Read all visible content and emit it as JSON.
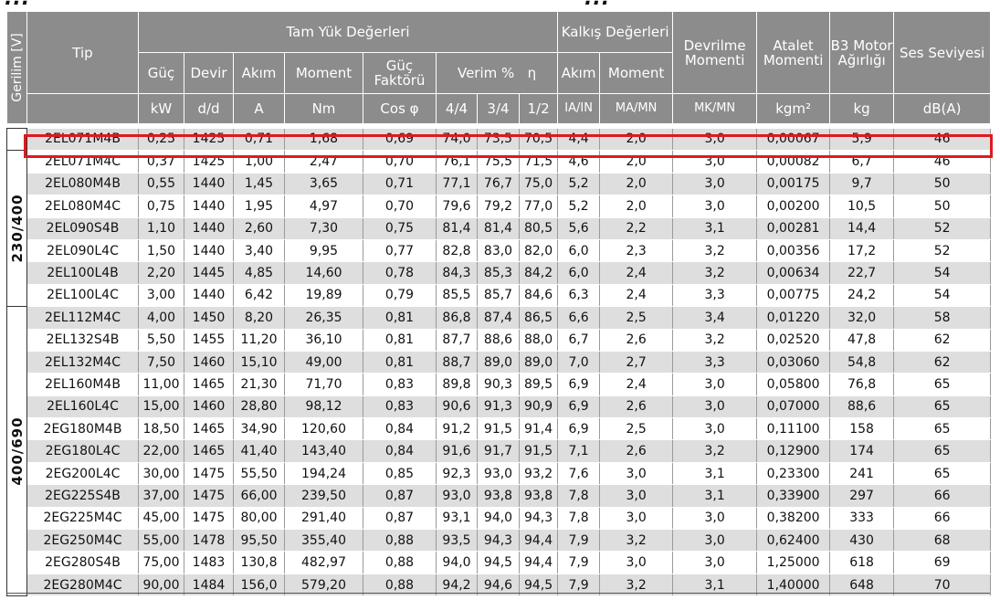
{
  "cutoff_title": {
    "left": "...",
    "right": "..."
  },
  "headers": {
    "gerilim": "Gerilim [V]",
    "tip": "Tip",
    "tam_yuk": "Tam Yük Değerleri",
    "kalkis": "Kalkış Değerleri",
    "devrilme": "Devrilme Momenti",
    "atalet": "Atalet Momenti",
    "b3": "B3 Motor Ağırlığı",
    "ses": "Ses Seviyesi",
    "guc": "Güç",
    "devir": "Devir",
    "akim": "Akım",
    "moment": "Moment",
    "guc_faktoru": "Güç Faktörü",
    "verim": "Verim %   η",
    "kalkis_akim": "Akım",
    "kalkis_moment": "Moment",
    "unit_kw": "kW",
    "unit_dd": "d/d",
    "unit_a": "A",
    "unit_nm": "Nm",
    "unit_cos": "Cos φ",
    "unit_44": "4/4",
    "unit_34": "3/4",
    "unit_12": "1/2",
    "unit_ia": "IA/IN",
    "unit_ma": "MA/MN",
    "unit_mk": "MK/MN",
    "unit_kgm": "kgm²",
    "unit_kg": "kg",
    "unit_db": "dB(A)"
  },
  "voltage_groups": [
    "230/400",
    "400/690"
  ],
  "rows": [
    [
      "2EL071M4B",
      "0,25",
      "1425",
      "0,71",
      "1,68",
      "0,69",
      "74,0",
      "73,5",
      "70,5",
      "4,4",
      "2,0",
      "3,0",
      "0,00067",
      "5,9",
      "46"
    ],
    [
      "2EL071M4C",
      "0,37",
      "1425",
      "1,00",
      "2,47",
      "0,70",
      "76,1",
      "75,5",
      "71,5",
      "4,6",
      "2,0",
      "3,0",
      "0,00082",
      "6,7",
      "46"
    ],
    [
      "2EL080M4B",
      "0,55",
      "1440",
      "1,45",
      "3,65",
      "0,71",
      "77,1",
      "76,7",
      "75,0",
      "5,2",
      "2,0",
      "3,0",
      "0,00175",
      "9,7",
      "50"
    ],
    [
      "2EL080M4C",
      "0,75",
      "1440",
      "1,95",
      "4,97",
      "0,70",
      "79,6",
      "79,2",
      "77,0",
      "5,2",
      "2,0",
      "3,0",
      "0,00200",
      "10,5",
      "50"
    ],
    [
      "2EL090S4B",
      "1,10",
      "1440",
      "2,60",
      "7,30",
      "0,75",
      "81,4",
      "81,4",
      "80,5",
      "5,6",
      "2,2",
      "3,1",
      "0,00281",
      "14,4",
      "52"
    ],
    [
      "2EL090L4C",
      "1,50",
      "1440",
      "3,40",
      "9,95",
      "0,77",
      "82,8",
      "83,0",
      "82,0",
      "6,0",
      "2,3",
      "3,2",
      "0,00356",
      "17,2",
      "52"
    ],
    [
      "2EL100L4B",
      "2,20",
      "1445",
      "4,85",
      "14,60",
      "0,78",
      "84,3",
      "85,3",
      "84,2",
      "6,0",
      "2,4",
      "3,2",
      "0,00634",
      "22,7",
      "54"
    ],
    [
      "2EL100L4C",
      "3,00",
      "1440",
      "6,42",
      "19,89",
      "0,79",
      "85,5",
      "85,7",
      "84,6",
      "6,3",
      "2,4",
      "3,3",
      "0,00775",
      "24,2",
      "54"
    ],
    [
      "2EL112M4C",
      "4,00",
      "1450",
      "8,20",
      "26,35",
      "0,81",
      "86,8",
      "87,4",
      "86,5",
      "6,6",
      "2,5",
      "3,4",
      "0,01220",
      "32,0",
      "58"
    ],
    [
      "2EL132S4B",
      "5,50",
      "1455",
      "11,20",
      "36,10",
      "0,81",
      "87,7",
      "88,6",
      "88,0",
      "6,7",
      "2,6",
      "3,2",
      "0,02520",
      "47,8",
      "62"
    ],
    [
      "2EL132M4C",
      "7,50",
      "1460",
      "15,10",
      "49,00",
      "0,81",
      "88,7",
      "89,0",
      "89,0",
      "7,0",
      "2,7",
      "3,3",
      "0,03060",
      "54,8",
      "62"
    ],
    [
      "2EL160M4B",
      "11,00",
      "1465",
      "21,30",
      "71,70",
      "0,83",
      "89,8",
      "90,3",
      "89,5",
      "6,9",
      "2,4",
      "3,0",
      "0,05800",
      "76,8",
      "65"
    ],
    [
      "2EL160L4C",
      "15,00",
      "1460",
      "28,80",
      "98,12",
      "0,83",
      "90,6",
      "91,3",
      "90,9",
      "6,9",
      "2,6",
      "3,0",
      "0,07000",
      "88,6",
      "65"
    ],
    [
      "2EG180M4B",
      "18,50",
      "1465",
      "34,90",
      "120,60",
      "0,84",
      "91,2",
      "91,5",
      "91,4",
      "6,9",
      "2,5",
      "3,0",
      "0,11100",
      "158",
      "65"
    ],
    [
      "2EG180L4C",
      "22,00",
      "1465",
      "41,40",
      "143,40",
      "0,84",
      "91,6",
      "91,7",
      "91,5",
      "7,1",
      "2,6",
      "3,2",
      "0,12900",
      "174",
      "65"
    ],
    [
      "2EG200L4C",
      "30,00",
      "1475",
      "55,50",
      "194,24",
      "0,85",
      "92,3",
      "93,0",
      "93,2",
      "7,6",
      "3,0",
      "3,1",
      "0,23300",
      "241",
      "65"
    ],
    [
      "2EG225S4B",
      "37,00",
      "1475",
      "66,00",
      "239,50",
      "0,87",
      "93,0",
      "93,8",
      "93,8",
      "7,8",
      "3,0",
      "3,1",
      "0,33900",
      "297",
      "66"
    ],
    [
      "2EG225M4C",
      "45,00",
      "1475",
      "80,00",
      "291,40",
      "0,87",
      "93,1",
      "94,0",
      "94,3",
      "7,8",
      "3,0",
      "3,0",
      "0,38200",
      "333",
      "66"
    ],
    [
      "2EG250M4C",
      "55,00",
      "1478",
      "95,50",
      "355,40",
      "0,88",
      "93,5",
      "94,3",
      "94,4",
      "7,9",
      "3,2",
      "3,0",
      "0,62400",
      "430",
      "68"
    ],
    [
      "2EG280S4B",
      "75,00",
      "1483",
      "130,8",
      "482,97",
      "0,88",
      "94,0",
      "94,5",
      "94,4",
      "7,9",
      "3,0",
      "3,0",
      "1,25000",
      "618",
      "69"
    ],
    [
      "2EG280M4C",
      "90,00",
      "1484",
      "156,0",
      "579,20",
      "0,88",
      "94,2",
      "94,6",
      "94,5",
      "7,9",
      "3,2",
      "3,1",
      "1,40000",
      "648",
      "70"
    ]
  ],
  "colors": {
    "header_bg": "#8c8c8c",
    "row_stripe": "#dedede",
    "highlight": "#e0191e"
  }
}
